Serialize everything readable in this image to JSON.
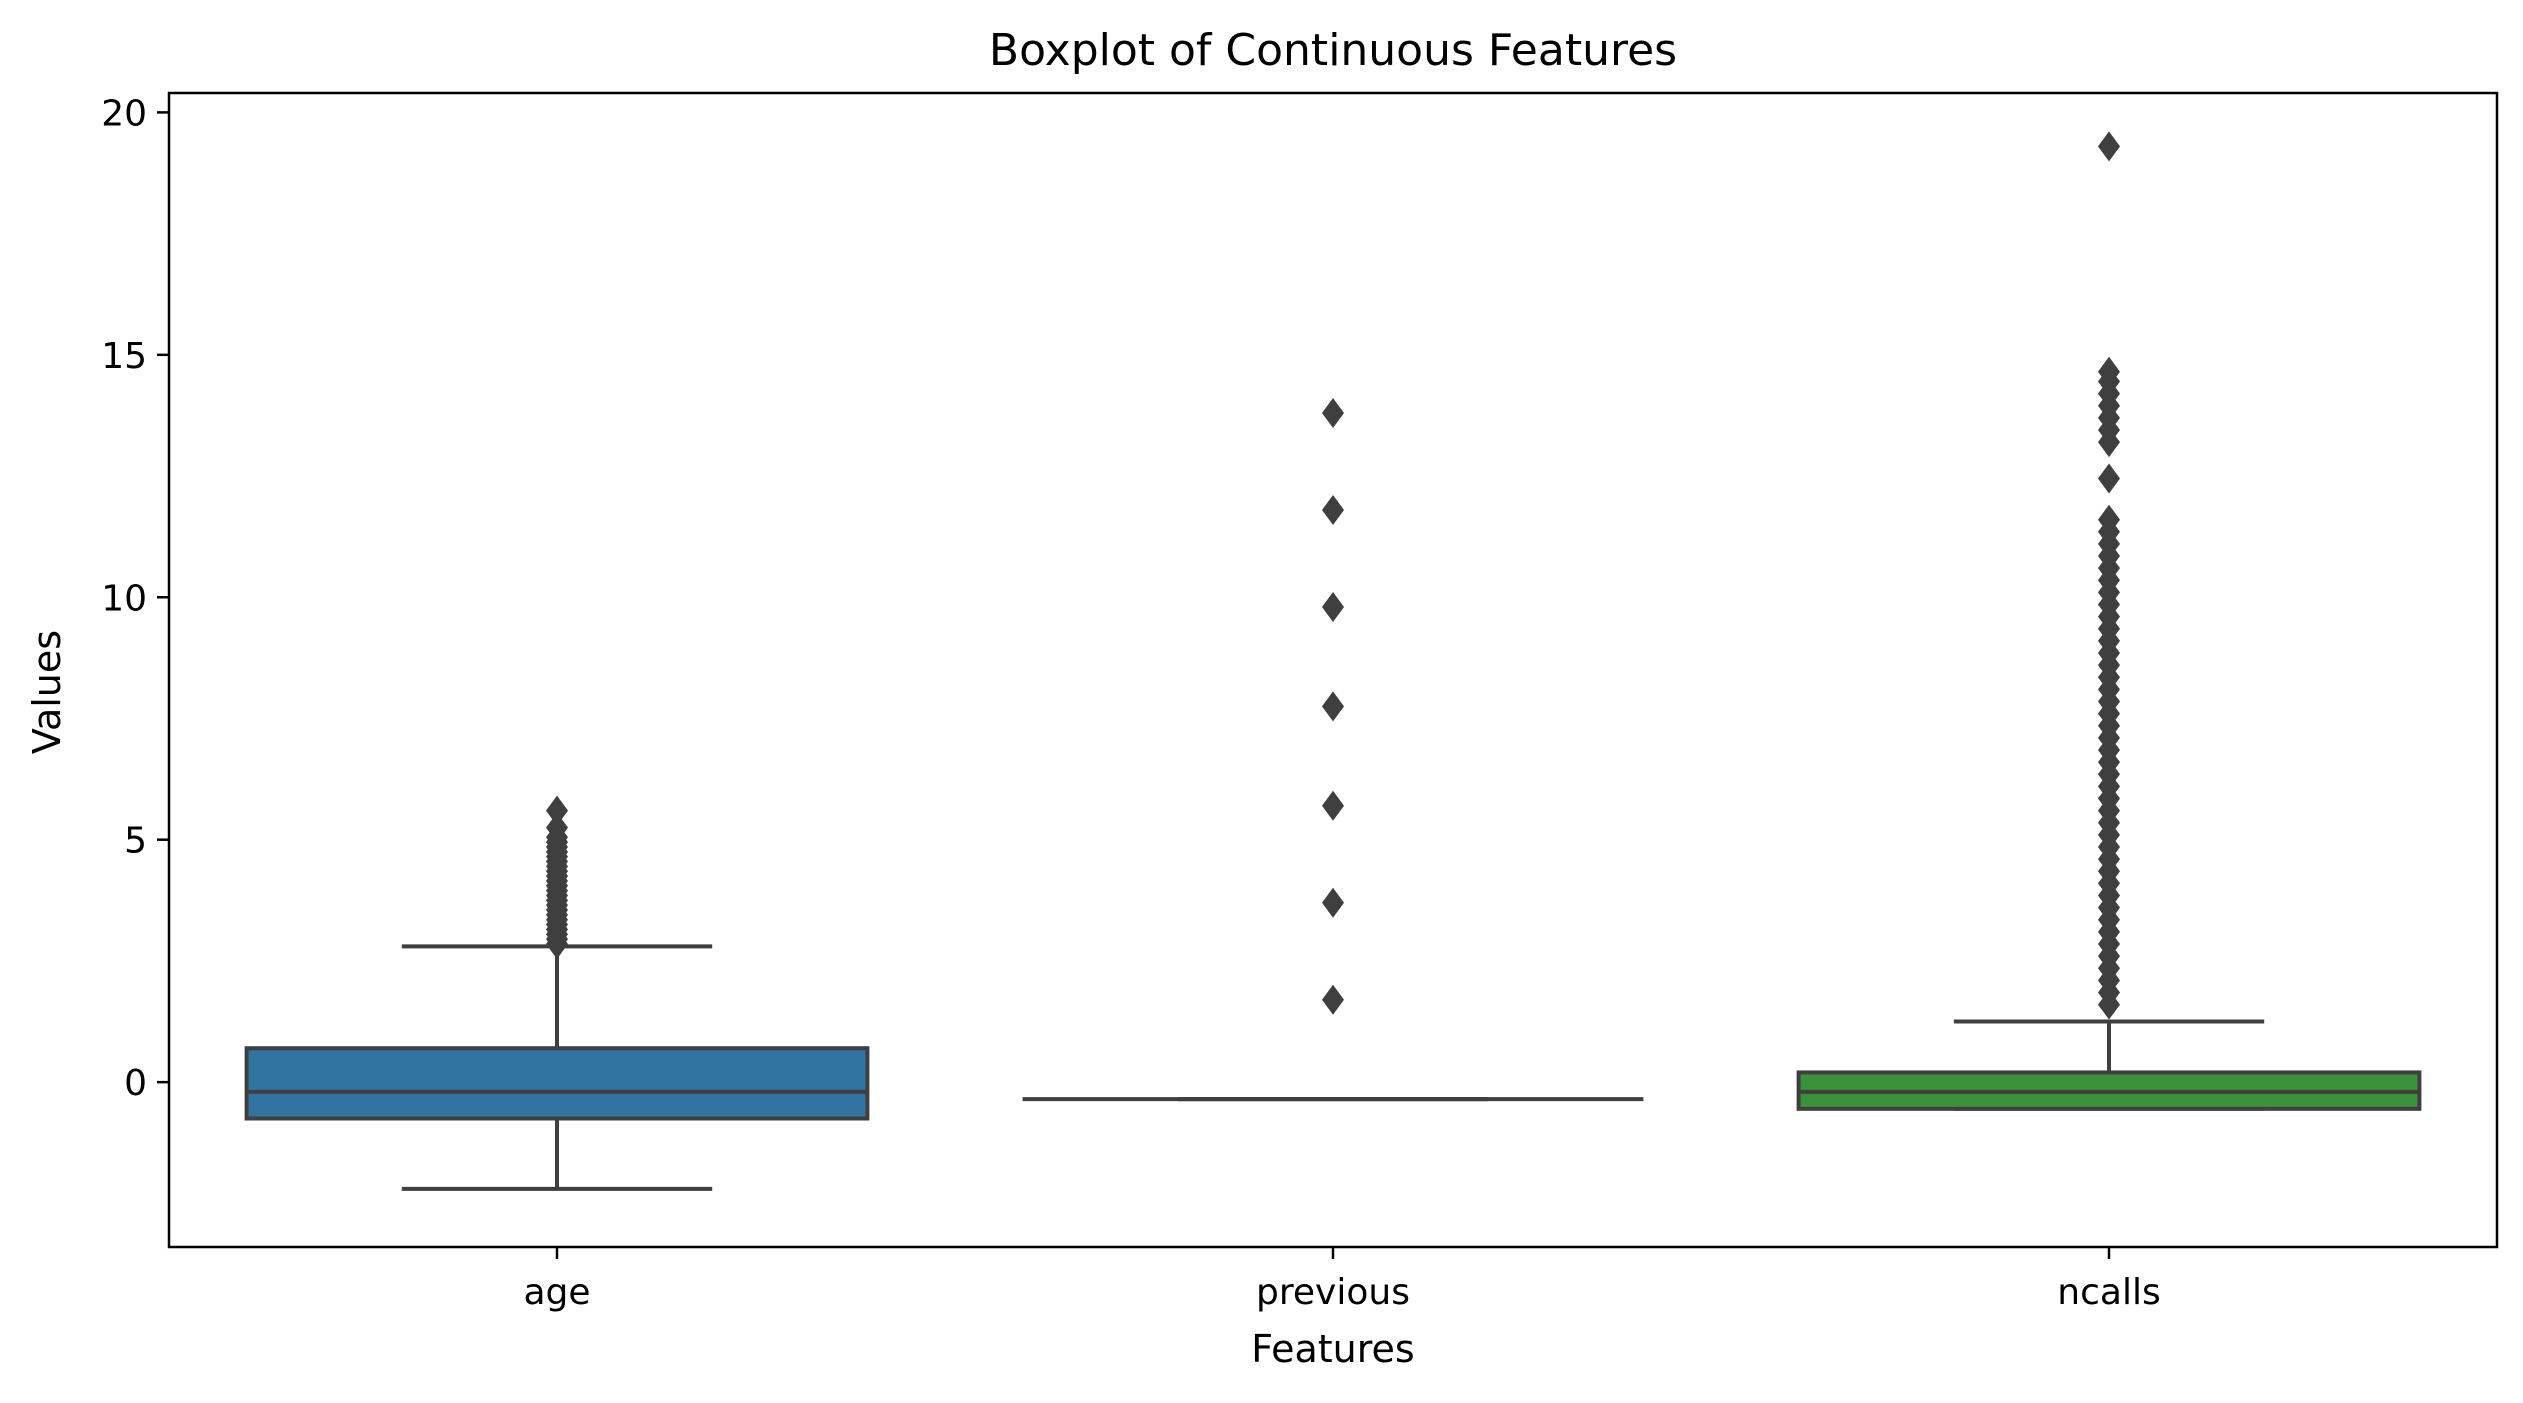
{
  "chart_data": {
    "type": "boxplot",
    "title": "Boxplot of Continuous Features",
    "xlabel": "Features",
    "ylabel": "Values",
    "categories": [
      "age",
      "previous",
      "ncalls"
    ],
    "ylim": [
      -3.4,
      20.4
    ],
    "yticks": [
      0,
      5,
      10,
      15,
      20
    ],
    "ytick_labels": [
      "0",
      "5",
      "10",
      "15",
      "20"
    ],
    "grid": false,
    "legend": "none",
    "colors": {
      "age": "#3274a1",
      "previous": "#e1812c",
      "ncalls": "#3a923a",
      "lines": "#3f3f3f",
      "outlier": "#3f3f3f"
    },
    "boxes": [
      {
        "category": "age",
        "whisker_low": -2.2,
        "q1": -0.75,
        "median": -0.2,
        "q3": 0.7,
        "whisker_high": 2.8,
        "outliers": [
          2.85,
          2.95,
          3.05,
          3.15,
          3.25,
          3.35,
          3.45,
          3.55,
          3.65,
          3.75,
          3.85,
          3.95,
          4.05,
          4.15,
          4.25,
          4.35,
          4.45,
          4.55,
          4.65,
          4.75,
          4.85,
          4.95,
          5.05,
          5.25,
          5.6
        ]
      },
      {
        "category": "previous",
        "whisker_low": -0.35,
        "q1": -0.35,
        "median": -0.35,
        "q3": -0.35,
        "whisker_high": -0.35,
        "outliers": [
          1.7,
          3.7,
          5.7,
          7.75,
          9.8,
          11.8,
          13.8
        ]
      },
      {
        "category": "ncalls",
        "whisker_low": -0.55,
        "q1": -0.55,
        "median": -0.2,
        "q3": 0.2,
        "whisker_high": 1.25,
        "outliers": [
          1.6,
          1.85,
          2.1,
          2.35,
          2.6,
          2.85,
          3.1,
          3.35,
          3.6,
          3.85,
          4.1,
          4.35,
          4.6,
          4.85,
          5.1,
          5.35,
          5.6,
          5.85,
          6.1,
          6.35,
          6.6,
          6.85,
          7.1,
          7.35,
          7.6,
          7.85,
          8.1,
          8.35,
          8.6,
          8.85,
          9.1,
          9.35,
          9.6,
          9.85,
          10.1,
          10.35,
          10.6,
          10.85,
          11.1,
          11.35,
          11.6,
          12.45,
          13.2,
          13.45,
          13.7,
          13.95,
          14.2,
          14.45,
          14.65,
          19.3
        ]
      }
    ]
  }
}
